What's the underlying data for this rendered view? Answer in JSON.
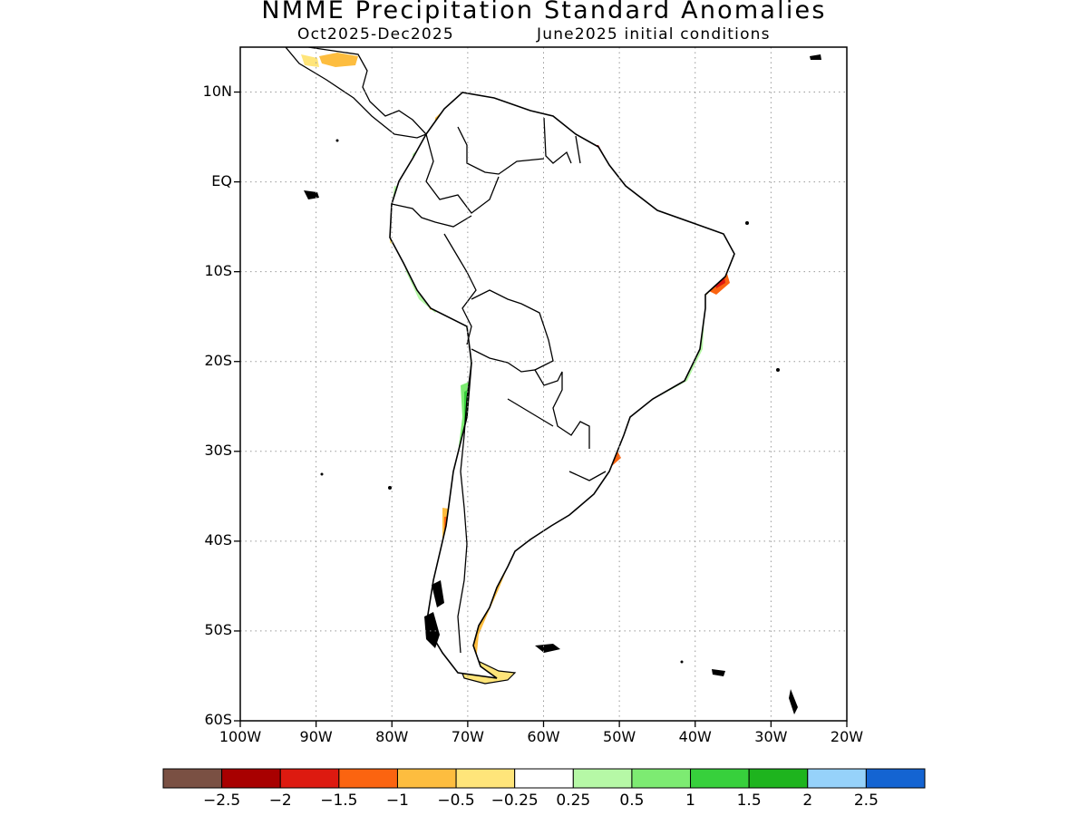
{
  "title": "NMME Precipitation Standard Anomalies",
  "subtitle_left": "Oct2025-Dec2025",
  "subtitle_right": "June2025 initial conditions",
  "lat_labels": [
    "10N",
    "EQ",
    "10S",
    "20S",
    "30S",
    "40S",
    "50S",
    "60S"
  ],
  "lon_labels": [
    "100W",
    "90W",
    "80W",
    "70W",
    "60W",
    "50W",
    "40W",
    "30W",
    "20W"
  ],
  "colorbar": {
    "colors": [
      "#7a5043",
      "#a80000",
      "#dd1a10",
      "#fb6410",
      "#fdbd3f",
      "#ffe57a",
      "#ffffff",
      "#b6f8a6",
      "#7deb72",
      "#37d03c",
      "#1eb41e",
      "#96d2fa",
      "#1464d2"
    ],
    "labels": [
      "-2.5",
      "-2",
      "-1.5",
      "-1",
      "-0.5",
      "-0.25",
      "0.25",
      "0.5",
      "1",
      "1.5",
      "2",
      "2.5"
    ]
  },
  "map_data": {
    "lat_range": [
      -60,
      15
    ],
    "lon_range": [
      -100,
      -20
    ],
    "tick_lats": [
      10,
      0,
      -10,
      -20,
      -30,
      -40,
      -50,
      -60
    ],
    "tick_lons": [
      -100,
      -90,
      -80,
      -70,
      -60,
      -50,
      -40,
      -30,
      -20
    ],
    "grid": "dotted"
  }
}
